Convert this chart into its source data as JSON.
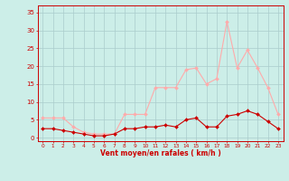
{
  "x": [
    0,
    1,
    2,
    3,
    4,
    5,
    6,
    7,
    8,
    9,
    10,
    11,
    12,
    13,
    14,
    15,
    16,
    17,
    18,
    19,
    20,
    21,
    22,
    23
  ],
  "wind_mean": [
    2.5,
    2.5,
    2.0,
    1.5,
    1.0,
    0.5,
    0.5,
    1.0,
    2.5,
    2.5,
    3.0,
    3.0,
    3.5,
    3.0,
    5.0,
    5.5,
    3.0,
    3.0,
    6.0,
    6.5,
    7.5,
    6.5,
    4.5,
    2.5
  ],
  "wind_gust": [
    5.5,
    5.5,
    5.5,
    3.0,
    1.5,
    1.0,
    1.0,
    1.0,
    6.5,
    6.5,
    6.5,
    14.0,
    14.0,
    14.0,
    19.0,
    19.5,
    15.0,
    16.5,
    32.5,
    19.5,
    24.5,
    19.5,
    14.0,
    6.5
  ],
  "color_mean": "#cc0000",
  "color_gust": "#ffaaaa",
  "bg_color": "#cceee8",
  "grid_color": "#aacccc",
  "xlabel": "Vent moyen/en rafales ( km/h )",
  "ylabel_ticks": [
    0,
    5,
    10,
    15,
    20,
    25,
    30,
    35
  ],
  "xlim": [
    -0.5,
    23.5
  ],
  "ylim": [
    -1,
    37
  ],
  "xlabel_color": "#cc0000",
  "tick_color": "#cc0000",
  "arrows": [
    "→",
    "→",
    "↓",
    "↓",
    "↓",
    "↓",
    "↓",
    "↓",
    "↖",
    "↖",
    "←",
    "↙",
    "↙",
    "↙",
    "↘",
    "↖",
    "↖",
    "↓",
    "↓",
    "↙",
    "↓",
    "↙",
    "→",
    "↘"
  ]
}
